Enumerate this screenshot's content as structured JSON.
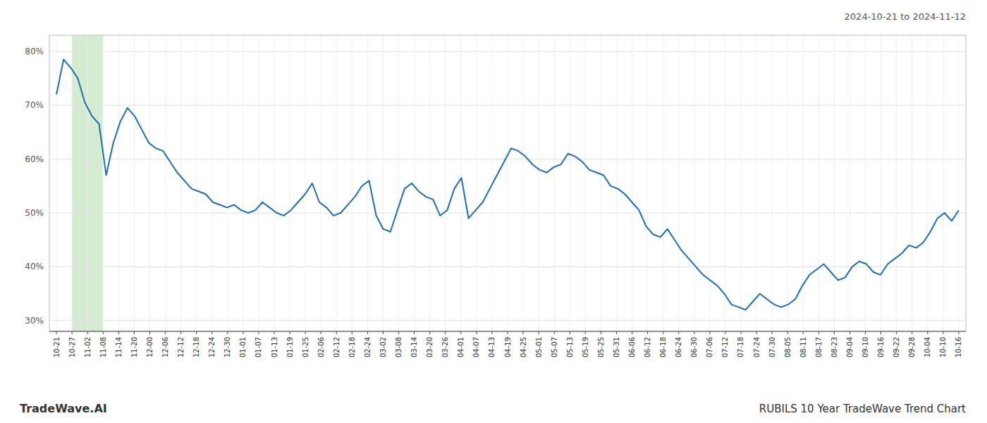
{
  "chart_data": {
    "type": "line",
    "title": "RUBILS 10 Year TradeWave Trend Chart",
    "subtitle": "2024-10-21 to 2024-11-12",
    "annotations": [
      "TradeWave.AI"
    ],
    "color": "#1f6cb0",
    "grid": true,
    "x": [
      0,
      1,
      2,
      3,
      4,
      5,
      6,
      7,
      8,
      9,
      10,
      11,
      12,
      13,
      14,
      15,
      16,
      17,
      18,
      19,
      20,
      21,
      22,
      23,
      24,
      25,
      26,
      27,
      28,
      29,
      30,
      31,
      32,
      33,
      34,
      35,
      36,
      37,
      38,
      39,
      40,
      41,
      42,
      43,
      44,
      45,
      46,
      47,
      48,
      49,
      50,
      51,
      52,
      53,
      54,
      55,
      56,
      57,
      58,
      59,
      60,
      61,
      62,
      63,
      64,
      65,
      66,
      67,
      68,
      69,
      70,
      71,
      72,
      73,
      74,
      75,
      76,
      77,
      78,
      79,
      80,
      81,
      82,
      83,
      84,
      85,
      86,
      87,
      88,
      89,
      90,
      91,
      92,
      93,
      94,
      95,
      96,
      97,
      98,
      99,
      100,
      101,
      102,
      103,
      104,
      105,
      106,
      107,
      108,
      109,
      110,
      111,
      112,
      113,
      114,
      115,
      116,
      117,
      118,
      119,
      120,
      121,
      122,
      123,
      124,
      125,
      126,
      127
    ],
    "values": [
      72.0,
      78.5,
      77.0,
      75.0,
      70.5,
      68.0,
      66.5,
      57.0,
      63.0,
      67.0,
      69.5,
      68.0,
      65.5,
      63.0,
      62.0,
      61.5,
      59.5,
      57.5,
      56.0,
      54.5,
      54.0,
      53.5,
      52.0,
      51.5,
      51.0,
      51.5,
      50.5,
      50.0,
      50.5,
      52.0,
      51.0,
      50.0,
      49.5,
      50.5,
      52.0,
      53.5,
      55.5,
      52.0,
      51.0,
      49.5,
      50.0,
      51.5,
      53.0,
      55.0,
      56.0,
      49.5,
      47.0,
      46.5,
      50.5,
      54.5,
      55.5,
      54.0,
      53.0,
      52.5,
      49.5,
      50.5,
      54.5,
      56.5,
      49.0,
      50.5,
      52.0,
      54.5,
      57.0,
      59.5,
      62.0,
      61.5,
      60.5,
      59.0,
      58.0,
      57.5,
      58.5,
      59.0,
      61.0,
      60.5,
      59.5,
      58.0,
      57.5,
      57.0,
      55.0,
      54.5,
      53.5,
      52.0,
      50.5,
      47.5,
      46.0,
      45.5,
      47.0,
      45.0,
      43.0,
      41.5,
      40.0,
      38.5,
      37.5,
      36.5,
      35.0,
      33.0,
      32.5,
      32.0,
      33.5,
      35.0,
      34.0,
      33.0,
      32.5,
      33.0,
      34.0,
      36.5,
      38.5,
      39.5,
      40.5,
      39.0,
      37.5,
      38.0,
      40.0,
      41.0,
      40.5,
      39.0,
      38.5,
      40.5,
      41.5,
      42.5,
      44.0,
      43.5,
      44.5,
      46.5,
      49.0,
      50.0,
      48.5,
      50.5
    ],
    "xlim": [
      -1,
      128
    ],
    "xticks": [
      {
        "value": 0,
        "label": "10-21"
      },
      {
        "value": 2.189655,
        "label": "10-27"
      },
      {
        "value": 4.37931,
        "label": "11-02"
      },
      {
        "value": 6.568966,
        "label": "11-08"
      },
      {
        "value": 8.758621,
        "label": "11-14"
      },
      {
        "value": 10.948276,
        "label": "11-20"
      },
      {
        "value": 13.137931,
        "label": "12-00"
      },
      {
        "value": 15.327586,
        "label": "12-06"
      },
      {
        "value": 17.517241,
        "label": "12-12"
      },
      {
        "value": 19.706897,
        "label": "12-18"
      },
      {
        "value": 21.896552,
        "label": "12-24"
      },
      {
        "value": 24.086207,
        "label": "12-30"
      },
      {
        "value": 26.275862,
        "label": "01-01"
      },
      {
        "value": 28.465517,
        "label": "01-07"
      },
      {
        "value": 30.655172,
        "label": "01-13"
      },
      {
        "value": 32.844828,
        "label": "01-19"
      },
      {
        "value": 35.034483,
        "label": "01-25"
      },
      {
        "value": 37.224138,
        "label": "02-06"
      },
      {
        "value": 39.413793,
        "label": "02-12"
      },
      {
        "value": 41.603448,
        "label": "02-18"
      },
      {
        "value": 43.793103,
        "label": "02-24"
      },
      {
        "value": 45.982759,
        "label": "03-02"
      },
      {
        "value": 48.172414,
        "label": "03-08"
      },
      {
        "value": 50.362069,
        "label": "03-14"
      },
      {
        "value": 52.551724,
        "label": "03-20"
      },
      {
        "value": 54.741379,
        "label": "03-26"
      },
      {
        "value": 56.931034,
        "label": "04-01"
      },
      {
        "value": 59.12069,
        "label": "04-07"
      },
      {
        "value": 61.310345,
        "label": "04-13"
      },
      {
        "value": 63.5,
        "label": "04-19"
      },
      {
        "value": 65.689655,
        "label": "04-25"
      },
      {
        "value": 67.87931,
        "label": "05-01"
      },
      {
        "value": 70.068966,
        "label": "05-07"
      },
      {
        "value": 72.258621,
        "label": "05-13"
      },
      {
        "value": 74.448276,
        "label": "05-19"
      },
      {
        "value": 76.637931,
        "label": "05-25"
      },
      {
        "value": 78.827586,
        "label": "05-31"
      },
      {
        "value": 81.017241,
        "label": "06-06"
      },
      {
        "value": 83.206897,
        "label": "06-12"
      },
      {
        "value": 85.396552,
        "label": "06-18"
      },
      {
        "value": 87.586207,
        "label": "06-24"
      },
      {
        "value": 89.775862,
        "label": "06-30"
      },
      {
        "value": 91.965517,
        "label": "07-06"
      },
      {
        "value": 94.155172,
        "label": "07-12"
      },
      {
        "value": 96.344828,
        "label": "07-18"
      },
      {
        "value": 98.534483,
        "label": "07-24"
      },
      {
        "value": 100.724138,
        "label": "07-30"
      },
      {
        "value": 102.913793,
        "label": "08-05"
      },
      {
        "value": 105.103448,
        "label": "08-11"
      },
      {
        "value": 107.293103,
        "label": "08-17"
      },
      {
        "value": 109.482759,
        "label": "08-23"
      },
      {
        "value": 111.672414,
        "label": "09-04"
      },
      {
        "value": 113.862069,
        "label": "09-10"
      },
      {
        "value": 116.051724,
        "label": "09-16"
      },
      {
        "value": 118.241379,
        "label": "09-22"
      },
      {
        "value": 120.431034,
        "label": "09-28"
      },
      {
        "value": 122.62069,
        "label": "10-04"
      },
      {
        "value": 124.810345,
        "label": "10-10"
      },
      {
        "value": 127,
        "label": "10-16"
      }
    ],
    "ylim": [
      28,
      83
    ],
    "yticks": [
      {
        "value": 30,
        "label": "30%"
      },
      {
        "value": 40,
        "label": "40%"
      },
      {
        "value": 50,
        "label": "50%"
      },
      {
        "value": 60,
        "label": "60%"
      },
      {
        "value": 70,
        "label": "70%"
      },
      {
        "value": 80,
        "label": "80%"
      }
    ],
    "shaded_region": {
      "x0": 2.169492,
      "x1": 6.508475,
      "color": "#d6ecd2"
    }
  }
}
